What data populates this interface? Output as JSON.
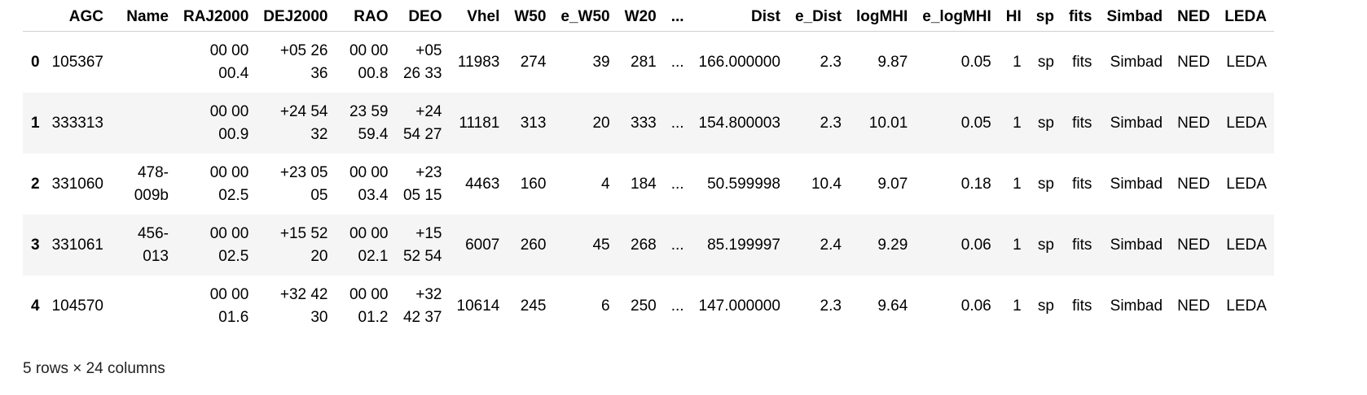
{
  "table": {
    "columns": [
      "AGC",
      "Name",
      "RAJ2000",
      "DEJ2000",
      "RAO",
      "DEO",
      "Vhel",
      "W50",
      "e_W50",
      "W20",
      "...",
      "Dist",
      "e_Dist",
      "logMHI",
      "e_logMHI",
      "HI",
      "sp",
      "fits",
      "Simbad",
      "NED",
      "LEDA"
    ],
    "rows": [
      {
        "index": "0",
        "cells": [
          "105367",
          "",
          "00 00 00.4",
          "+05 26 36",
          "00 00 00.8",
          "+05 26 33",
          "11983",
          "274",
          "39",
          "281",
          "...",
          "166.000000",
          "2.3",
          "9.87",
          "0.05",
          "1",
          "sp",
          "fits",
          "Simbad",
          "NED",
          "LEDA"
        ]
      },
      {
        "index": "1",
        "cells": [
          "333313",
          "",
          "00 00 00.9",
          "+24 54 32",
          "23 59 59.4",
          "+24 54 27",
          "11181",
          "313",
          "20",
          "333",
          "...",
          "154.800003",
          "2.3",
          "10.01",
          "0.05",
          "1",
          "sp",
          "fits",
          "Simbad",
          "NED",
          "LEDA"
        ]
      },
      {
        "index": "2",
        "cells": [
          "331060",
          "478-009b",
          "00 00 02.5",
          "+23 05 05",
          "00 00 03.4",
          "+23 05 15",
          "4463",
          "160",
          "4",
          "184",
          "...",
          "50.599998",
          "10.4",
          "9.07",
          "0.18",
          "1",
          "sp",
          "fits",
          "Simbad",
          "NED",
          "LEDA"
        ]
      },
      {
        "index": "3",
        "cells": [
          "331061",
          "456-013",
          "00 00 02.5",
          "+15 52 20",
          "00 00 02.1",
          "+15 52 54",
          "6007",
          "260",
          "45",
          "268",
          "...",
          "85.199997",
          "2.4",
          "9.29",
          "0.06",
          "1",
          "sp",
          "fits",
          "Simbad",
          "NED",
          "LEDA"
        ]
      },
      {
        "index": "4",
        "cells": [
          "104570",
          "",
          "00 00 01.6",
          "+32 42 30",
          "00 00 01.2",
          "+32 42 37",
          "10614",
          "245",
          "6",
          "250",
          "...",
          "147.000000",
          "2.3",
          "9.64",
          "0.06",
          "1",
          "sp",
          "fits",
          "Simbad",
          "NED",
          "LEDA"
        ]
      }
    ]
  },
  "footer": {
    "summary": "5 rows × 24 columns"
  },
  "colors": {
    "stripe": "#f5f5f5",
    "header_rule": "#cfcfcf",
    "text": "#000000"
  }
}
